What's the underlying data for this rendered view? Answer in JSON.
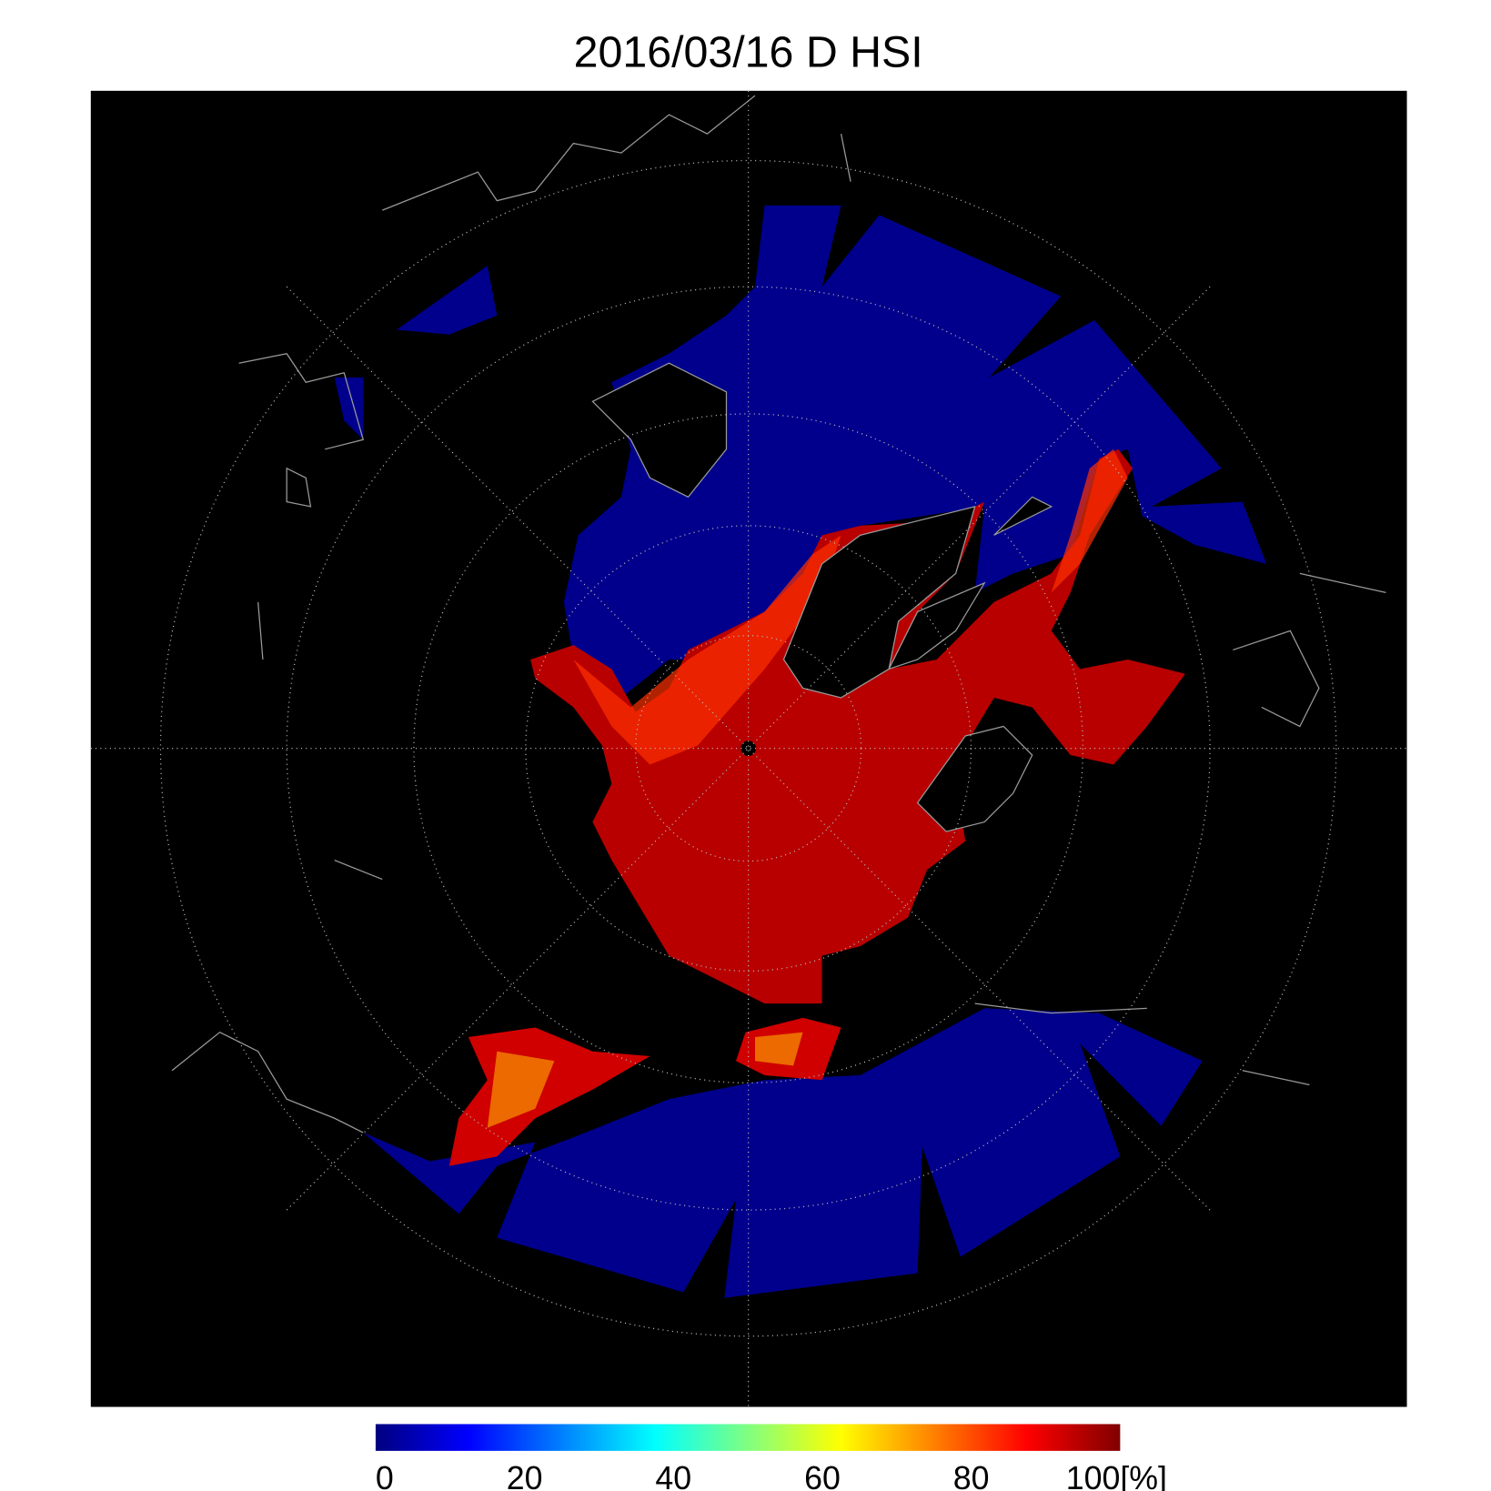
{
  "title": "2016/03/16 D HSI",
  "colorbar": {
    "lim": [
      0,
      100
    ],
    "ticks": [
      0,
      20,
      40,
      60,
      80,
      100
    ],
    "unit": "[%]",
    "colors": [
      "#000080",
      "#0000ff",
      "#0080ff",
      "#00ffff",
      "#80ff80",
      "#ffff00",
      "#ff8000",
      "#ff0000",
      "#800000"
    ]
  }
}
